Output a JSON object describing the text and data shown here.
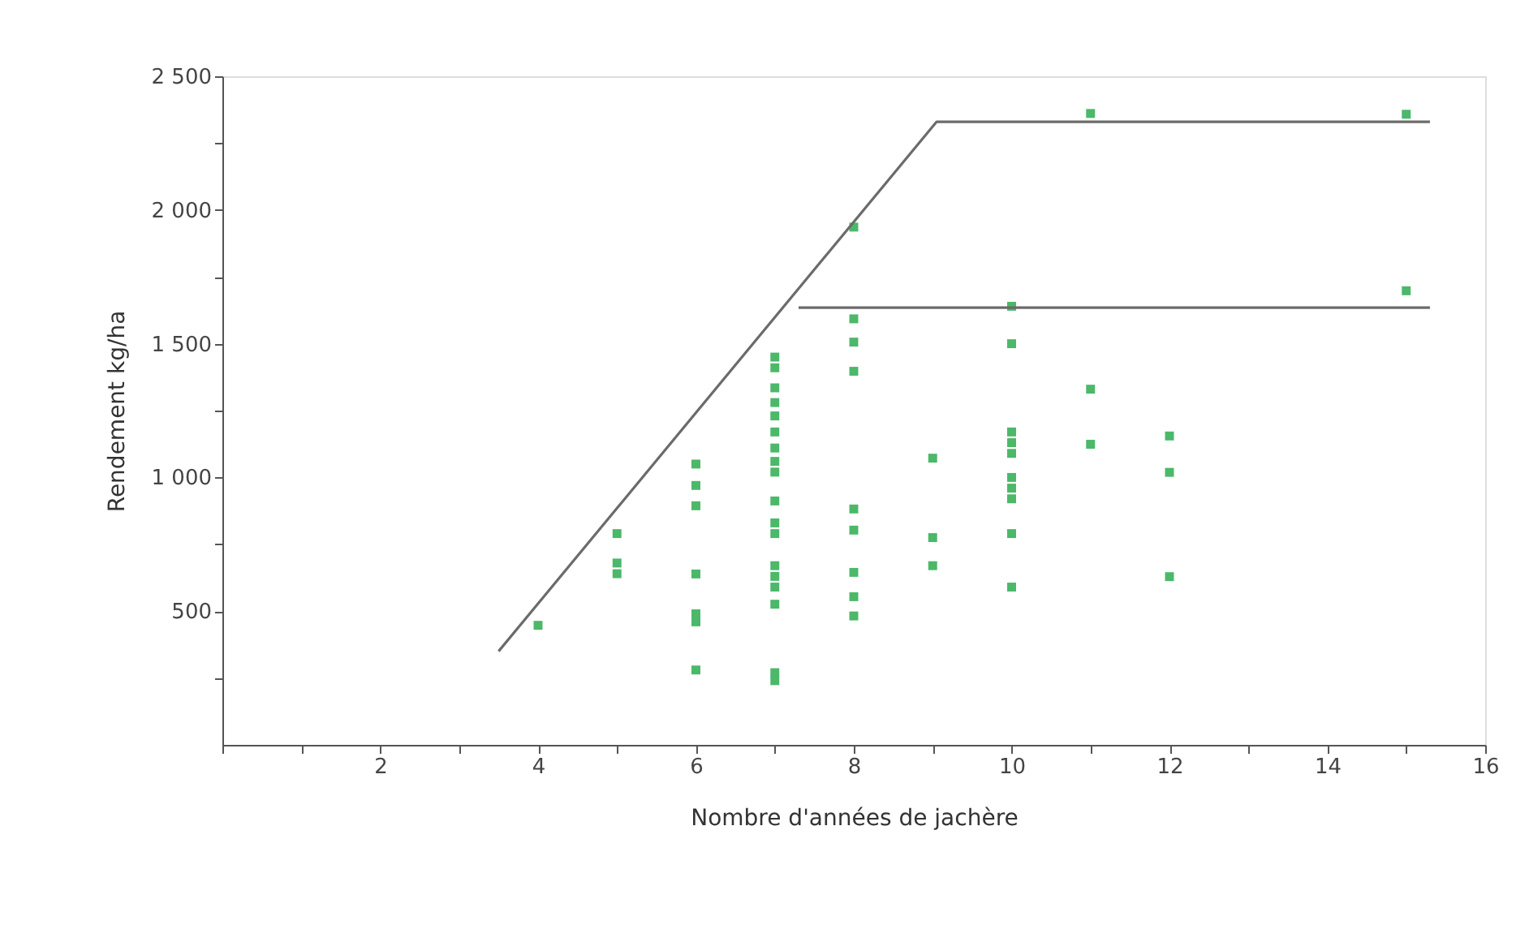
{
  "chart_data": {
    "type": "scatter",
    "xlabel": "Nombre d'années de jachère",
    "ylabel": "Rendement kg/ha",
    "xlim": [
      0,
      16
    ],
    "ylim": [
      0,
      2500
    ],
    "xticks": [
      {
        "value": 0,
        "label": null
      },
      {
        "value": 1,
        "label": null
      },
      2,
      {
        "value": 3,
        "label": null
      },
      4,
      {
        "value": 5,
        "label": null
      },
      6,
      {
        "value": 7,
        "label": null
      },
      8,
      {
        "value": 9,
        "label": null
      },
      10,
      {
        "value": 11,
        "label": null
      },
      12,
      {
        "value": 13,
        "label": null
      },
      14,
      {
        "value": 15,
        "label": null
      },
      16
    ],
    "yticks": [
      {
        "value": 250,
        "label": null
      },
      500,
      {
        "value": 750,
        "label": null
      },
      {
        "value": 1000,
        "label": "1 000"
      },
      {
        "value": 1250,
        "label": null
      },
      {
        "value": 1500,
        "label": "1 500"
      },
      {
        "value": 1750,
        "label": null
      },
      {
        "value": 2000,
        "label": "2 000"
      },
      {
        "value": 2250,
        "label": null
      },
      {
        "value": 2500,
        "label": "2 500"
      }
    ],
    "grid": false,
    "marker": "square",
    "series": [
      {
        "color": "#4cb86a",
        "x": [
          4,
          5,
          5,
          5,
          6,
          6,
          6,
          6,
          6,
          6,
          6,
          7,
          7,
          7,
          7,
          7,
          7,
          7,
          7,
          7,
          7,
          7,
          7,
          7,
          7,
          7,
          7,
          7,
          7,
          8,
          8,
          8,
          8,
          8,
          8,
          8,
          8,
          8,
          9,
          9,
          9,
          10,
          10,
          10,
          10,
          10,
          10,
          10,
          10,
          10,
          10,
          11,
          11,
          11,
          12,
          12,
          12,
          15,
          15
        ],
        "values": [
          447,
          790,
          680,
          640,
          1050,
          970,
          894,
          639,
          490,
          460,
          280,
          1450,
          1410,
          1335,
          1280,
          1230,
          1170,
          1110,
          1060,
          1020,
          912,
          830,
          790,
          670,
          630,
          590,
          526,
          270,
          240,
          1936,
          1593,
          1506,
          1397,
          882,
          803,
          645,
          554,
          482,
          1072,
          775,
          670,
          1640,
          1500,
          1170,
          1130,
          1090,
          1000,
          960,
          920,
          790,
          590,
          2361,
          1330,
          1124,
          1155,
          1019,
          629,
          2358,
          1698
        ]
      },
      {
        "type": "line",
        "color": "#6b6b6b",
        "marker": "none",
        "x": [
          3.5,
          9.05,
          15.3
        ],
        "values": [
          350,
          2330,
          2330
        ]
      },
      {
        "type": "line",
        "color": "#6b6b6b",
        "marker": "none",
        "x": [
          7.3,
          15.3
        ],
        "values": [
          1635,
          1635
        ]
      }
    ]
  }
}
